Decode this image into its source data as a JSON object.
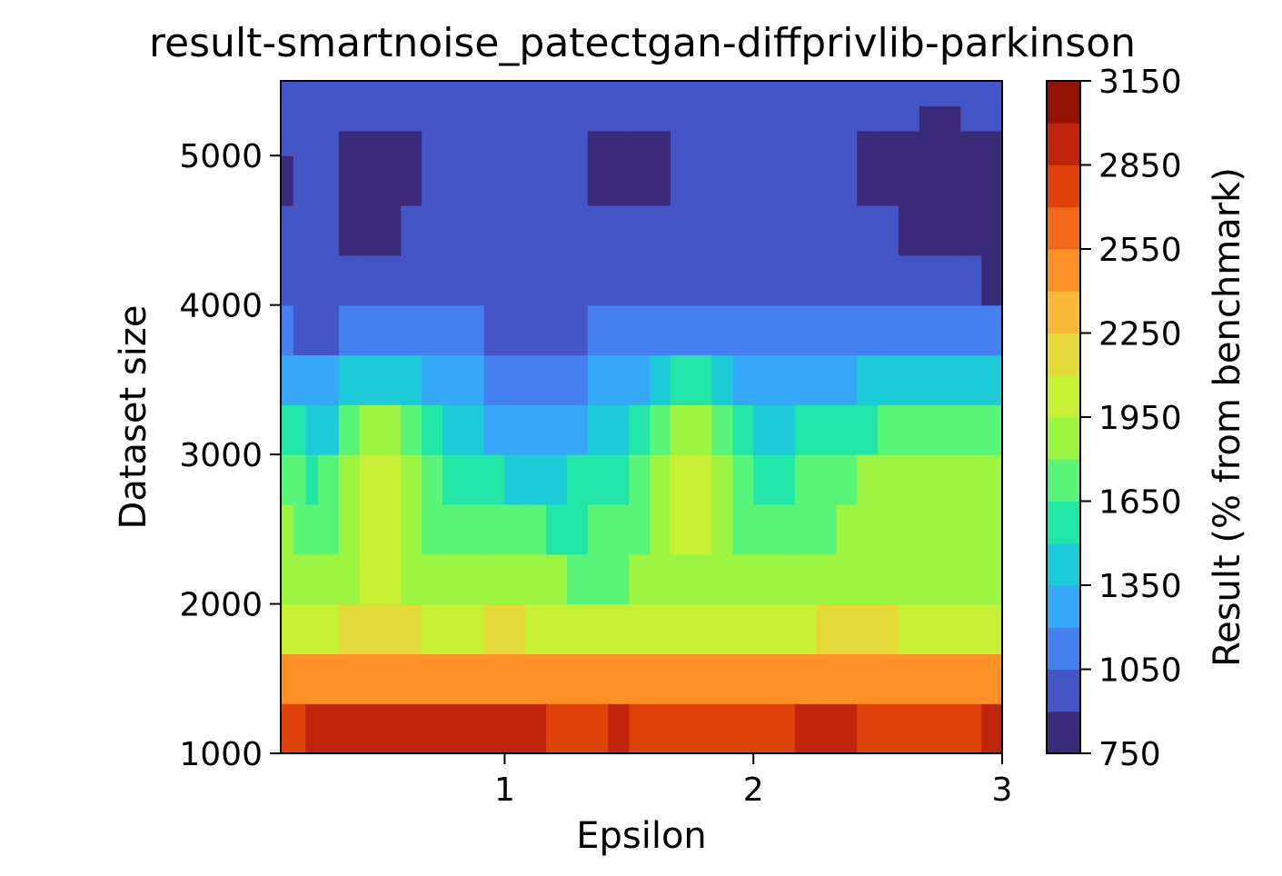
{
  "chart_data": {
    "type": "heatmap",
    "title": "result-smartnoise_patectgan-diffprivlib-parkinson",
    "xlabel": "Epsilon",
    "ylabel": "Dataset size",
    "colorbar_label": "Result (% from benchmark)",
    "xlim": [
      0.1,
      3.0
    ],
    "ylim": [
      1000,
      5500
    ],
    "x_ticks": [
      "1",
      "2",
      "3"
    ],
    "x_tick_values": [
      1,
      2,
      3
    ],
    "y_ticks": [
      "1000",
      "2000",
      "3000",
      "4000",
      "5000"
    ],
    "y_tick_values": [
      1000,
      2000,
      3000,
      4000,
      5000
    ],
    "levels": [
      750,
      900,
      1050,
      1200,
      1350,
      1500,
      1650,
      1800,
      1950,
      2100,
      2250,
      2400,
      2550,
      2700,
      2850,
      3000,
      3150
    ],
    "colorbar_ticks": [
      "750",
      "1050",
      "1350",
      "1650",
      "1950",
      "2250",
      "2550",
      "2850",
      "3150"
    ],
    "colorbar_tick_values": [
      750,
      1050,
      1350,
      1650,
      1950,
      2250,
      2550,
      2850,
      3150
    ],
    "level_colors": [
      "#3a2a7a",
      "#4456c7",
      "#4480f0",
      "#36a8f9",
      "#1ccbd8",
      "#22e6a6",
      "#58f579",
      "#9df542",
      "#c6f034",
      "#e6da38",
      "#f9ba3a",
      "#fd9127",
      "#f2681a",
      "#df4209",
      "#c0250b",
      "#931101"
    ],
    "grid": false,
    "x": [
      0.1,
      0.25,
      0.5,
      0.75,
      1.0,
      1.25,
      1.5,
      1.75,
      2.0,
      2.25,
      2.5,
      2.75,
      3.0
    ],
    "y": [
      1000,
      2000,
      3000,
      4000,
      5000,
      5500
    ],
    "z": [
      [
        3000,
        3080,
        3090,
        3040,
        3090,
        3030,
        3060,
        3000,
        2990,
        3090,
        3010,
        2990,
        3080
      ],
      [
        1900,
        1880,
        1980,
        1880,
        1930,
        1880,
        1830,
        1930,
        1860,
        1900,
        1940,
        1880,
        1880
      ],
      [
        1800,
        1500,
        2110,
        1550,
        1400,
        1400,
        1560,
        2140,
        1500,
        1660,
        1800,
        1800,
        1800
      ],
      [
        950,
        900,
        950,
        990,
        950,
        950,
        980,
        1000,
        960,
        960,
        950,
        1010,
        890
      ],
      [
        880,
        940,
        800,
        930,
        940,
        940,
        810,
        940,
        940,
        940,
        860,
        770,
        850
      ],
      [
        1000,
        1000,
        1000,
        1000,
        1060,
        1000,
        1000,
        1000,
        1000,
        1000,
        1000,
        1000,
        1000
      ]
    ]
  }
}
